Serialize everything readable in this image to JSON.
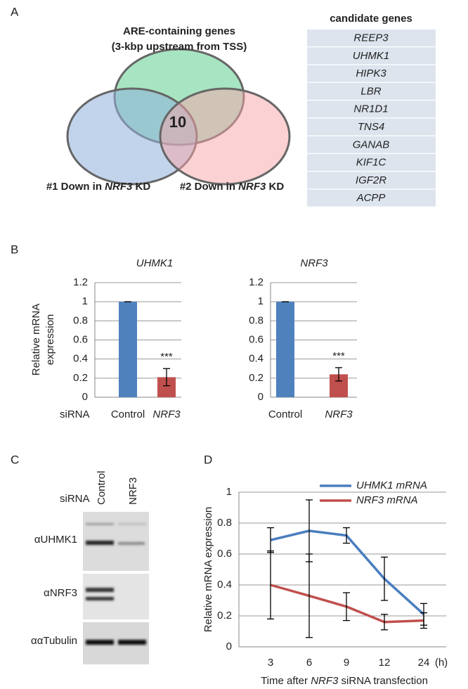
{
  "panel_labels": [
    "A",
    "B",
    "C",
    "D"
  ],
  "venn": {
    "title": [
      "ARE-containing genes",
      "(3-kbp upstream from TSS)"
    ],
    "intersection": "10",
    "set_labels": [
      [
        "#1 Down in ",
        "NRF3",
        " KD"
      ],
      [
        "#2  Down in ",
        "NRF3",
        " KD"
      ]
    ]
  },
  "candidate_table": {
    "header": "candidate genes",
    "rows": [
      "REEP3",
      "UHMK1",
      "HIPK3",
      "LBR",
      "NR1D1",
      "TNS4",
      "GANAB",
      "KIF1C",
      "IGF2R",
      "ACPP"
    ]
  },
  "western_blot": {
    "condition_label": "siRNA",
    "lanes": [
      "Control",
      "NRF3"
    ],
    "rows": [
      "αUHMK1",
      "αNRF3",
      "ααTubulin"
    ]
  },
  "chart_data": [
    {
      "type": "bar",
      "title": "UHMK1",
      "y_label": [
        "Relative mRNA",
        "expression"
      ],
      "x_label": "siRNA",
      "categories": [
        "Control",
        "NRF3"
      ],
      "values": [
        1,
        0.21
      ],
      "errors": [
        0,
        0.09
      ],
      "significance": [
        null,
        "***"
      ],
      "colors": [
        "#4f81bd",
        "#c0504d"
      ],
      "ylim": [
        0,
        1.2
      ],
      "yticks": [
        0,
        0.2,
        0.4,
        0.6,
        0.8,
        1,
        1.2
      ],
      "grid": true
    },
    {
      "type": "bar",
      "title": "NRF3",
      "categories": [
        "Control",
        "NRF3"
      ],
      "values": [
        1,
        0.24
      ],
      "errors": [
        0,
        0.07
      ],
      "significance": [
        null,
        "***"
      ],
      "colors": [
        "#4f81bd",
        "#c0504d"
      ],
      "ylim": [
        0,
        1.2
      ],
      "yticks": [
        0,
        0.2,
        0.4,
        0.6,
        0.8,
        1,
        1.2
      ],
      "grid": true
    },
    {
      "type": "line",
      "y_label": "Relative mRNA expression",
      "x_label": [
        "Time after ",
        "NRF3",
        " siRNA transfection"
      ],
      "x_unit": "(h)",
      "categories": [
        "3",
        "6",
        "9",
        "12",
        "24"
      ],
      "series": [
        {
          "name": "UHMK1 mRNA",
          "color": "#4a7ebf",
          "values": [
            0.69,
            0.75,
            0.72,
            0.44,
            0.21
          ],
          "errors": [
            0.08,
            0.2,
            0.05,
            0.14,
            0.07
          ]
        },
        {
          "name": "NRF3 mRNA",
          "color": "#c0504d",
          "values": [
            0.4,
            0.33,
            0.26,
            0.16,
            0.17
          ],
          "errors": [
            0.22,
            0.27,
            0.09,
            0.05,
            0.05
          ]
        }
      ],
      "ylim": [
        0,
        1
      ],
      "yticks": [
        0,
        0.2,
        0.4,
        0.6,
        0.8,
        1
      ],
      "grid": true,
      "legend": "top-right"
    }
  ]
}
